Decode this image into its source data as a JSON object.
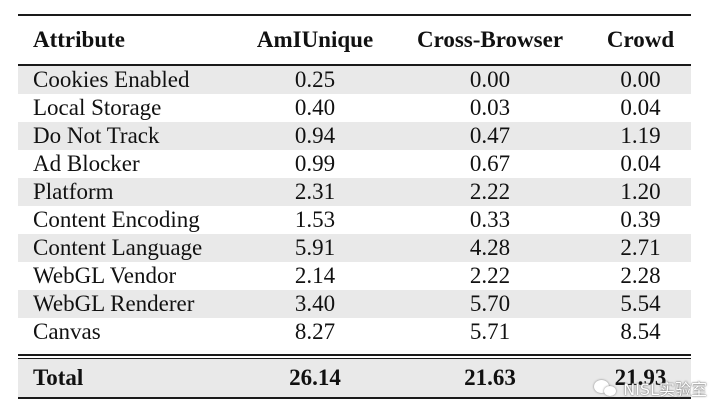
{
  "table": {
    "headers": [
      "Attribute",
      "AmIUnique",
      "Cross-Browser",
      "Crowd"
    ],
    "rows": [
      [
        "Cookies Enabled",
        "0.25",
        "0.00",
        "0.00"
      ],
      [
        "Local Storage",
        "0.40",
        "0.03",
        "0.04"
      ],
      [
        "Do Not Track",
        "0.94",
        "0.47",
        "1.19"
      ],
      [
        "Ad Blocker",
        "0.99",
        "0.67",
        "0.04"
      ],
      [
        "Platform",
        "2.31",
        "2.22",
        "1.20"
      ],
      [
        "Content Encoding",
        "1.53",
        "0.33",
        "0.39"
      ],
      [
        "Content Language",
        "5.91",
        "4.28",
        "2.71"
      ],
      [
        "WebGL Vendor",
        "2.14",
        "2.22",
        "2.28"
      ],
      [
        "WebGL Renderer",
        "3.40",
        "5.70",
        "5.54"
      ],
      [
        "Canvas",
        "8.27",
        "5.71",
        "8.54"
      ]
    ],
    "total": [
      "Total",
      "26.14",
      "21.63",
      "21.93"
    ],
    "row_shading": "alternating",
    "shade_color": "#e9e9e9"
  },
  "watermark": {
    "icon": "wechat-icon",
    "text": "NISL实验室"
  }
}
